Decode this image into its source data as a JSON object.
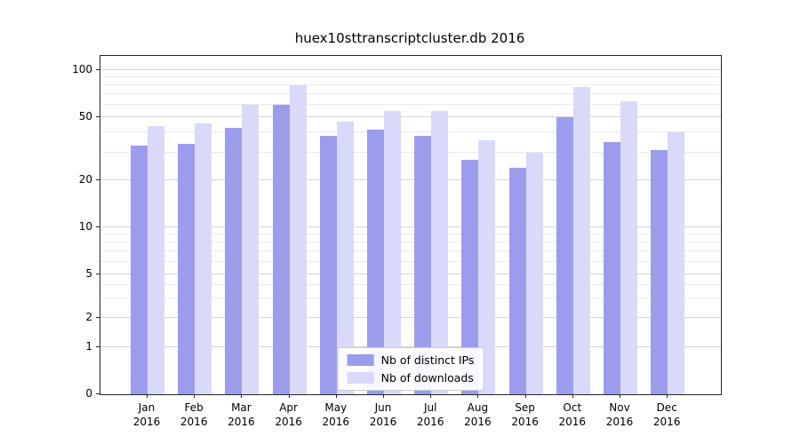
{
  "chart_data": {
    "type": "bar",
    "title": "huex10sttranscriptcluster.db 2016",
    "categories": [
      "Jan",
      "Feb",
      "Mar",
      "Apr",
      "May",
      "Jun",
      "Jul",
      "Aug",
      "Sep",
      "Oct",
      "Nov",
      "Dec"
    ],
    "x_tick_second_line": "2016",
    "series": [
      {
        "name": "Nb of distinct IPs",
        "color": "#9b9dec",
        "values": [
          33,
          34,
          43,
          60,
          38,
          42,
          38,
          27,
          24,
          50,
          35,
          31
        ]
      },
      {
        "name": "Nb of downloads",
        "color": "#d9d9fa",
        "values": [
          44,
          46,
          60,
          80,
          47,
          55,
          55,
          36,
          30,
          78,
          63,
          40
        ]
      }
    ],
    "yscale": "symlog",
    "yticks": [
      0,
      1,
      2,
      5,
      10,
      20,
      50,
      100
    ],
    "yminor_ticks": [
      3,
      4,
      6,
      7,
      8,
      9,
      30,
      40,
      60,
      70,
      80,
      90
    ],
    "ylim": [
      0,
      130
    ],
    "xlabel": "",
    "ylabel": "",
    "grid": true,
    "legend_position": "lower center",
    "colors": {
      "grid_major": "#d6d6d6",
      "grid_minor": "#ebebeb",
      "spine": "#262626",
      "background": "#ffffff"
    }
  }
}
